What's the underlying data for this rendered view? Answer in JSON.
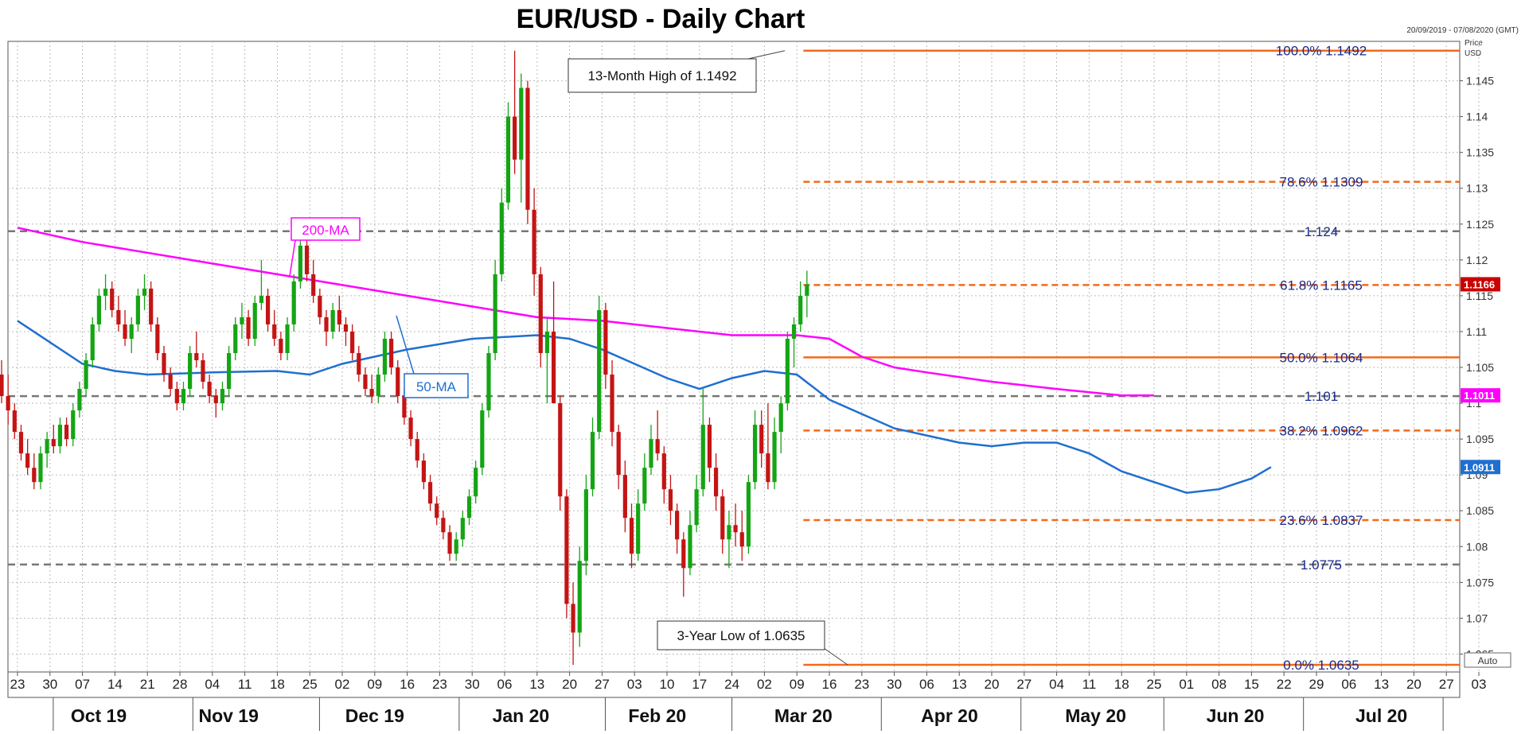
{
  "chart_data": {
    "type": "candlestick",
    "title": "EUR/USD - Daily Chart",
    "date_range": "20/09/2019 - 07/08/2020 (GMT)",
    "yaxis_label": "Price",
    "yaxis_unit": "USD",
    "auto_label": "Auto",
    "ylim": [
      1.0625,
      1.1505
    ],
    "yticks": [
      {
        "v": 1.145,
        "label": "1.145"
      },
      {
        "v": 1.14,
        "label": "1.14"
      },
      {
        "v": 1.135,
        "label": "1.135"
      },
      {
        "v": 1.13,
        "label": "1.13"
      },
      {
        "v": 1.125,
        "label": "1.125"
      },
      {
        "v": 1.12,
        "label": "1.12"
      },
      {
        "v": 1.115,
        "label": "1.115"
      },
      {
        "v": 1.11,
        "label": "1.11"
      },
      {
        "v": 1.105,
        "label": "1.105"
      },
      {
        "v": 1.1,
        "label": "1.1"
      },
      {
        "v": 1.095,
        "label": "1.095"
      },
      {
        "v": 1.09,
        "label": "1.09"
      },
      {
        "v": 1.085,
        "label": "1.085"
      },
      {
        "v": 1.08,
        "label": "1.08"
      },
      {
        "v": 1.075,
        "label": "1.075"
      },
      {
        "v": 1.07,
        "label": "1.07"
      },
      {
        "v": 1.065,
        "label": "1.065"
      }
    ],
    "price_tags": [
      {
        "v": 1.1166,
        "label": "1.1166",
        "color": "#cc0000"
      },
      {
        "v": 1.1011,
        "label": "1.1011",
        "color": "#ff00ff"
      },
      {
        "v": 1.0911,
        "label": "1.0911",
        "color": "#1f6fd0"
      }
    ],
    "x_tick_labels": [
      "23",
      "30",
      "07",
      "14",
      "21",
      "28",
      "04",
      "11",
      "18",
      "25",
      "02",
      "09",
      "16",
      "23",
      "30",
      "06",
      "13",
      "20",
      "27",
      "03",
      "10",
      "17",
      "24",
      "02",
      "09",
      "16",
      "23",
      "30",
      "06",
      "13",
      "20",
      "27",
      "04",
      "11",
      "18",
      "25",
      "01",
      "08",
      "15",
      "22",
      "29",
      "06",
      "13",
      "20",
      "27",
      "03"
    ],
    "month_labels": [
      "Oct 19",
      "Nov 19",
      "Dec 19",
      "Jan 20",
      "Feb 20",
      "Mar 20",
      "Apr 20",
      "May 20",
      "Jun 20",
      "Jul 20"
    ],
    "month_label_weeks": [
      2.5,
      6.5,
      11,
      15.5,
      19.7,
      24.2,
      28.7,
      33.2,
      37.5,
      42
    ],
    "month_boundary_weeks": [
      1.1,
      5.4,
      9.3,
      13.6,
      18.1,
      22,
      26.6,
      30.9,
      35.3,
      39.6,
      43.9
    ],
    "fib_levels": [
      {
        "v": 1.1492,
        "label": "100.0%  1.1492",
        "style": "solid"
      },
      {
        "v": 1.1309,
        "label": "78.6%  1.1309",
        "style": "dashed"
      },
      {
        "v": 1.1165,
        "label": "61.8%  1.1165",
        "style": "dashed"
      },
      {
        "v": 1.1064,
        "label": "50.0%  1.1064",
        "style": "solid"
      },
      {
        "v": 1.0962,
        "label": "38.2%  1.0962",
        "style": "dashed"
      },
      {
        "v": 1.0837,
        "label": "23.6%  1.0837",
        "style": "dashed"
      },
      {
        "v": 1.0635,
        "label": "0.0%  1.0635",
        "style": "solid"
      }
    ],
    "sr_levels": [
      {
        "v": 1.124,
        "label": "1.124"
      },
      {
        "v": 1.101,
        "label": "1.101"
      },
      {
        "v": 1.0775,
        "label": "1.0775"
      }
    ],
    "annotations": [
      {
        "text": "13-Month High of 1.1492",
        "v": 1.1492,
        "week": 24.2
      },
      {
        "text": "3-Year Low of 1.0635",
        "v": 1.0635,
        "week": 26.2
      }
    ],
    "ma_labels": [
      {
        "text": "200-MA",
        "color": "#ff00ff"
      },
      {
        "text": "50-MA",
        "color": "#1f6fd0"
      }
    ],
    "ma200": [
      [
        0,
        1.1245
      ],
      [
        2,
        1.1225
      ],
      [
        4,
        1.121
      ],
      [
        6,
        1.1195
      ],
      [
        8,
        1.118
      ],
      [
        10,
        1.1165
      ],
      [
        12,
        1.115
      ],
      [
        14,
        1.1135
      ],
      [
        16,
        1.112
      ],
      [
        18,
        1.1115
      ],
      [
        20,
        1.1105
      ],
      [
        22,
        1.1095
      ],
      [
        24,
        1.1095
      ],
      [
        25,
        1.109
      ],
      [
        26,
        1.1065
      ],
      [
        27,
        1.105
      ],
      [
        28,
        1.1043
      ],
      [
        30,
        1.103
      ],
      [
        32,
        1.102
      ],
      [
        34,
        1.1011
      ],
      [
        35,
        1.1011
      ]
    ],
    "ma50": [
      [
        0,
        1.1115
      ],
      [
        2,
        1.1055
      ],
      [
        3,
        1.1045
      ],
      [
        4,
        1.104
      ],
      [
        6,
        1.1043
      ],
      [
        8,
        1.1045
      ],
      [
        9,
        1.104
      ],
      [
        10,
        1.1055
      ],
      [
        12,
        1.1075
      ],
      [
        14,
        1.109
      ],
      [
        16,
        1.1095
      ],
      [
        17,
        1.109
      ],
      [
        18,
        1.1075
      ],
      [
        19,
        1.1055
      ],
      [
        20,
        1.1035
      ],
      [
        21,
        1.102
      ],
      [
        22,
        1.1035
      ],
      [
        23,
        1.1045
      ],
      [
        24,
        1.104
      ],
      [
        25,
        1.1005
      ],
      [
        26,
        1.0985
      ],
      [
        27,
        1.0965
      ],
      [
        28,
        1.0955
      ],
      [
        29,
        1.0945
      ],
      [
        30,
        1.094
      ],
      [
        31,
        1.0945
      ],
      [
        32,
        1.0945
      ],
      [
        33,
        1.093
      ],
      [
        34,
        1.0905
      ],
      [
        35,
        1.089
      ],
      [
        36,
        1.0875
      ],
      [
        37,
        1.088
      ],
      [
        38,
        1.0895
      ],
      [
        38.6,
        1.0911
      ]
    ],
    "candles": [
      [
        1.104,
        1.106,
        1.1,
        1.101
      ],
      [
        1.101,
        1.104,
        1.097,
        1.099
      ],
      [
        1.099,
        1.1,
        1.095,
        1.096
      ],
      [
        1.096,
        1.097,
        1.092,
        1.093
      ],
      [
        1.093,
        1.095,
        1.09,
        1.091
      ],
      [
        1.091,
        1.093,
        1.088,
        1.089
      ],
      [
        1.089,
        1.094,
        1.088,
        1.093
      ],
      [
        1.093,
        1.096,
        1.091,
        1.095
      ],
      [
        1.095,
        1.097,
        1.093,
        1.094
      ],
      [
        1.094,
        1.098,
        1.093,
        1.097
      ],
      [
        1.097,
        1.098,
        1.094,
        1.095
      ],
      [
        1.095,
        1.1,
        1.094,
        1.099
      ],
      [
        1.099,
        1.103,
        1.098,
        1.102
      ],
      [
        1.102,
        1.107,
        1.101,
        1.106
      ],
      [
        1.106,
        1.112,
        1.105,
        1.111
      ],
      [
        1.111,
        1.116,
        1.11,
        1.115
      ],
      [
        1.115,
        1.118,
        1.113,
        1.116
      ],
      [
        1.116,
        1.117,
        1.112,
        1.113
      ],
      [
        1.113,
        1.115,
        1.11,
        1.111
      ],
      [
        1.111,
        1.113,
        1.108,
        1.109
      ],
      [
        1.109,
        1.112,
        1.107,
        1.111
      ],
      [
        1.111,
        1.116,
        1.11,
        1.115
      ],
      [
        1.115,
        1.118,
        1.113,
        1.116
      ],
      [
        1.116,
        1.117,
        1.11,
        1.111
      ],
      [
        1.111,
        1.112,
        1.106,
        1.107
      ],
      [
        1.107,
        1.108,
        1.103,
        1.104
      ],
      [
        1.104,
        1.105,
        1.101,
        1.102
      ],
      [
        1.102,
        1.103,
        1.099,
        1.1
      ],
      [
        1.1,
        1.103,
        1.099,
        1.102
      ],
      [
        1.102,
        1.108,
        1.101,
        1.107
      ],
      [
        1.107,
        1.11,
        1.105,
        1.106
      ],
      [
        1.106,
        1.107,
        1.102,
        1.103
      ],
      [
        1.103,
        1.104,
        1.1,
        1.101
      ],
      [
        1.101,
        1.102,
        1.098,
        1.1
      ],
      [
        1.1,
        1.103,
        1.099,
        1.102
      ],
      [
        1.102,
        1.108,
        1.101,
        1.107
      ],
      [
        1.107,
        1.112,
        1.106,
        1.111
      ],
      [
        1.111,
        1.114,
        1.109,
        1.112
      ],
      [
        1.112,
        1.113,
        1.108,
        1.109
      ],
      [
        1.109,
        1.115,
        1.108,
        1.114
      ],
      [
        1.114,
        1.12,
        1.113,
        1.115
      ],
      [
        1.115,
        1.116,
        1.11,
        1.111
      ],
      [
        1.111,
        1.113,
        1.108,
        1.109
      ],
      [
        1.109,
        1.11,
        1.106,
        1.107
      ],
      [
        1.107,
        1.112,
        1.106,
        1.111
      ],
      [
        1.111,
        1.118,
        1.11,
        1.117
      ],
      [
        1.117,
        1.124,
        1.116,
        1.122
      ],
      [
        1.122,
        1.123,
        1.117,
        1.118
      ],
      [
        1.118,
        1.12,
        1.114,
        1.115
      ],
      [
        1.115,
        1.116,
        1.111,
        1.112
      ],
      [
        1.112,
        1.113,
        1.108,
        1.11
      ],
      [
        1.11,
        1.114,
        1.109,
        1.113
      ],
      [
        1.113,
        1.115,
        1.11,
        1.111
      ],
      [
        1.111,
        1.112,
        1.108,
        1.11
      ],
      [
        1.11,
        1.111,
        1.106,
        1.107
      ],
      [
        1.107,
        1.108,
        1.103,
        1.104
      ],
      [
        1.104,
        1.105,
        1.101,
        1.102
      ],
      [
        1.102,
        1.104,
        1.1,
        1.101
      ],
      [
        1.101,
        1.105,
        1.1,
        1.104
      ],
      [
        1.104,
        1.11,
        1.103,
        1.109
      ],
      [
        1.109,
        1.11,
        1.104,
        1.105
      ],
      [
        1.105,
        1.106,
        1.1,
        1.101
      ],
      [
        1.101,
        1.102,
        1.097,
        1.098
      ],
      [
        1.098,
        1.099,
        1.094,
        1.095
      ],
      [
        1.095,
        1.096,
        1.091,
        1.092
      ],
      [
        1.092,
        1.093,
        1.088,
        1.089
      ],
      [
        1.089,
        1.09,
        1.085,
        1.086
      ],
      [
        1.086,
        1.087,
        1.083,
        1.084
      ],
      [
        1.084,
        1.085,
        1.081,
        1.082
      ],
      [
        1.082,
        1.083,
        1.078,
        1.079
      ],
      [
        1.079,
        1.082,
        1.078,
        1.081
      ],
      [
        1.081,
        1.085,
        1.08,
        1.084
      ],
      [
        1.084,
        1.088,
        1.083,
        1.087
      ],
      [
        1.087,
        1.092,
        1.086,
        1.091
      ],
      [
        1.091,
        1.1,
        1.09,
        1.099
      ],
      [
        1.099,
        1.108,
        1.098,
        1.107
      ],
      [
        1.107,
        1.12,
        1.106,
        1.118
      ],
      [
        1.118,
        1.13,
        1.117,
        1.128
      ],
      [
        1.128,
        1.142,
        1.127,
        1.14
      ],
      [
        1.14,
        1.1492,
        1.132,
        1.134
      ],
      [
        1.134,
        1.146,
        1.128,
        1.144
      ],
      [
        1.144,
        1.145,
        1.125,
        1.127
      ],
      [
        1.127,
        1.13,
        1.115,
        1.118
      ],
      [
        1.118,
        1.119,
        1.105,
        1.107
      ],
      [
        1.107,
        1.112,
        1.1,
        1.11
      ],
      [
        1.11,
        1.117,
        1.1,
        1.1
      ],
      [
        1.1,
        1.101,
        1.085,
        1.087
      ],
      [
        1.087,
        1.088,
        1.07,
        1.072
      ],
      [
        1.072,
        1.075,
        1.0635,
        1.068
      ],
      [
        1.068,
        1.08,
        1.066,
        1.078
      ],
      [
        1.078,
        1.09,
        1.076,
        1.088
      ],
      [
        1.088,
        1.098,
        1.087,
        1.096
      ],
      [
        1.096,
        1.115,
        1.095,
        1.113
      ],
      [
        1.113,
        1.114,
        1.102,
        1.104
      ],
      [
        1.104,
        1.106,
        1.094,
        1.096
      ],
      [
        1.096,
        1.097,
        1.088,
        1.09
      ],
      [
        1.09,
        1.092,
        1.082,
        1.084
      ],
      [
        1.084,
        1.086,
        1.077,
        1.079
      ],
      [
        1.079,
        1.088,
        1.078,
        1.086
      ],
      [
        1.086,
        1.093,
        1.085,
        1.091
      ],
      [
        1.091,
        1.097,
        1.09,
        1.095
      ],
      [
        1.095,
        1.099,
        1.092,
        1.093
      ],
      [
        1.093,
        1.094,
        1.086,
        1.088
      ],
      [
        1.088,
        1.09,
        1.083,
        1.085
      ],
      [
        1.085,
        1.086,
        1.079,
        1.081
      ],
      [
        1.081,
        1.082,
        1.073,
        1.077
      ],
      [
        1.077,
        1.085,
        1.076,
        1.083
      ],
      [
        1.083,
        1.09,
        1.082,
        1.088
      ],
      [
        1.088,
        1.102,
        1.087,
        1.097
      ],
      [
        1.097,
        1.098,
        1.089,
        1.091
      ],
      [
        1.091,
        1.093,
        1.085,
        1.087
      ],
      [
        1.087,
        1.088,
        1.079,
        1.081
      ],
      [
        1.081,
        1.085,
        1.077,
        1.083
      ],
      [
        1.083,
        1.086,
        1.08,
        1.082
      ],
      [
        1.082,
        1.085,
        1.078,
        1.08
      ],
      [
        1.08,
        1.09,
        1.079,
        1.089
      ],
      [
        1.089,
        1.099,
        1.088,
        1.097
      ],
      [
        1.097,
        1.099,
        1.091,
        1.093
      ],
      [
        1.093,
        1.1,
        1.088,
        1.089
      ],
      [
        1.089,
        1.098,
        1.088,
        1.096
      ],
      [
        1.096,
        1.101,
        1.093,
        1.1
      ],
      [
        1.1,
        1.11,
        1.099,
        1.109
      ],
      [
        1.109,
        1.112,
        1.105,
        1.111
      ],
      [
        1.111,
        1.117,
        1.11,
        1.115
      ],
      [
        1.115,
        1.1185,
        1.112,
        1.1166
      ]
    ]
  }
}
